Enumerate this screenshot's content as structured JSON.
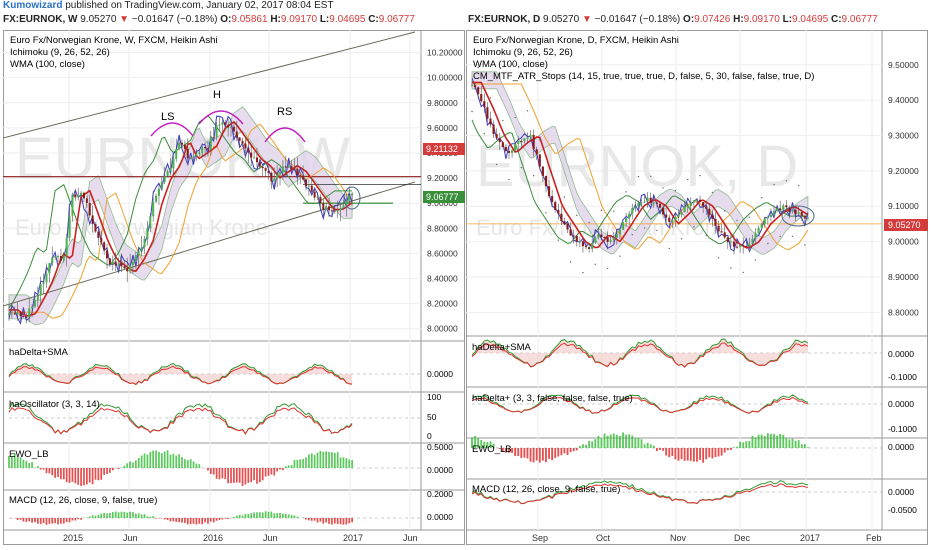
{
  "header": {
    "author": "Kumowizard",
    "text": "published on TradingView.com, January 02, 2017 08:04 EST"
  },
  "left": {
    "quote": {
      "symbol": "FX:EURNOK, W",
      "price": "9.05270",
      "arrow": "▼",
      "change": "−0.01647 (−0.18%)",
      "o_label": "O:",
      "o": "9.05861",
      "h_label": "H:",
      "h": "9.09170",
      "l_label": "L:",
      "l": "9.04695",
      "c_label": "C:",
      "c": "9.06777"
    },
    "legend": [
      "Euro Fx/Norwegian Krone, W, FXCM, Heikin Ashi",
      "Ichimoku (9, 26, 52, 26)",
      "WMA (100, close)"
    ],
    "watermark_big": "EURNOK, W",
    "watermark_small": "Euro Fx/Norwegian Krone",
    "pattern_labels": [
      "LS",
      "H",
      "RS"
    ],
    "price_tag_red": "9.21132",
    "price_tag_green": "9.06777",
    "price_axis": [
      "10.20000",
      "10.00000",
      "9.80000",
      "9.60000",
      "9.40000",
      "9.20000",
      "9.00000",
      "8.80000",
      "8.60000",
      "8.40000",
      "8.20000",
      "8.00000"
    ],
    "panes": [
      {
        "title": "haDelta+SMA",
        "axis": [
          "0.0000"
        ]
      },
      {
        "title": "haOscillator (3, 3, 14)",
        "axis": [
          "100",
          "50",
          "0"
        ]
      },
      {
        "title": "EWO_LB",
        "axis": [
          "0.5000",
          "0.0000"
        ]
      },
      {
        "title": "MACD (12, 26, close, 9, false, true)",
        "axis": [
          "0.2000",
          "0.0000"
        ]
      }
    ],
    "time_axis": [
      "2015",
      "Jun",
      "2016",
      "Jun",
      "2017",
      "Jun"
    ]
  },
  "right": {
    "quote": {
      "symbol": "FX:EURNOK, D",
      "price": "9.05270",
      "arrow": "▼",
      "change": "−0.01647 (−0.18%)",
      "o_label": "O:",
      "o": "9.07426",
      "h_label": "H:",
      "h": "9.09170",
      "l_label": "L:",
      "l": "9.04695",
      "c_label": "C:",
      "c": "9.06777"
    },
    "legend": [
      "Euro Fx/Norwegian Krone, D, FXCM, Heikin Ashi",
      "Ichimoku (9, 26, 52, 26)",
      "WMA (100, close)",
      "CM_MTF_ATR_Stops (14, 15, true, true, true, D, false, 5, 30, false, false, true, D)"
    ],
    "watermark_big": "EURNOK, D",
    "watermark_small": "Euro Fx/Norwegian Krone",
    "price_tag": "9.05270",
    "price_axis": [
      "9.50000",
      "9.40000",
      "9.30000",
      "9.20000",
      "9.10000",
      "9.00000",
      "8.90000",
      "8.80000"
    ],
    "panes": [
      {
        "title": "haDelta+SMA",
        "axis": [
          "0.0000",
          "-0.1000"
        ]
      },
      {
        "title": "haDelta+ (3, 3, false, false, false, true)",
        "axis": [
          "0.0000",
          "-0.1000"
        ]
      },
      {
        "title": "EWO_LB",
        "axis": [
          "0.0000"
        ]
      },
      {
        "title": "MACD (12, 26, close, 9, false, true)",
        "axis": [
          "0.0000",
          "-0.0500"
        ]
      }
    ],
    "time_axis": [
      "Sep",
      "Oct",
      "Nov",
      "Dec",
      "2017",
      "Feb"
    ]
  },
  "chart_data": [
    {
      "type": "candlestick",
      "title": "Euro Fx/Norwegian Krone, W, FXCM, Heikin Ashi",
      "ylim": [
        7.95,
        10.3
      ],
      "x_ticks": [
        "2015",
        "Jun",
        "2016",
        "Jun",
        "2017",
        "Jun"
      ],
      "close_path": [
        8.15,
        8.1,
        8.12,
        8.25,
        8.4,
        8.6,
        8.55,
        9.05,
        9.1,
        8.9,
        8.7,
        8.55,
        8.5,
        8.45,
        8.55,
        8.7,
        9.0,
        9.2,
        9.3,
        9.5,
        9.35,
        9.4,
        9.45,
        9.6,
        9.65,
        9.55,
        9.45,
        9.35,
        9.3,
        9.2,
        9.25,
        9.3,
        9.25,
        9.15,
        9.05,
        8.95,
        8.95,
        9.0,
        9.05
      ],
      "annotations": [
        "LS",
        "H",
        "RS"
      ],
      "last_close": 9.06777,
      "marked_level": 9.21132
    },
    {
      "type": "candlestick",
      "title": "Euro Fx/Norwegian Krone, D, FXCM, Heikin Ashi",
      "ylim": [
        8.75,
        9.57
      ],
      "x_ticks": [
        "Sep",
        "Oct",
        "Nov",
        "Dec",
        "2017",
        "Feb"
      ],
      "close_path": [
        9.45,
        9.38,
        9.3,
        9.25,
        9.28,
        9.3,
        9.2,
        9.1,
        9.05,
        9.0,
        8.98,
        9.02,
        9.0,
        9.05,
        9.1,
        9.12,
        9.1,
        9.05,
        9.08,
        9.12,
        9.1,
        9.05,
        9.0,
        8.98,
        9.0,
        9.05,
        9.08,
        9.1,
        9.08,
        9.06
      ],
      "last_close": 9.0527
    }
  ]
}
